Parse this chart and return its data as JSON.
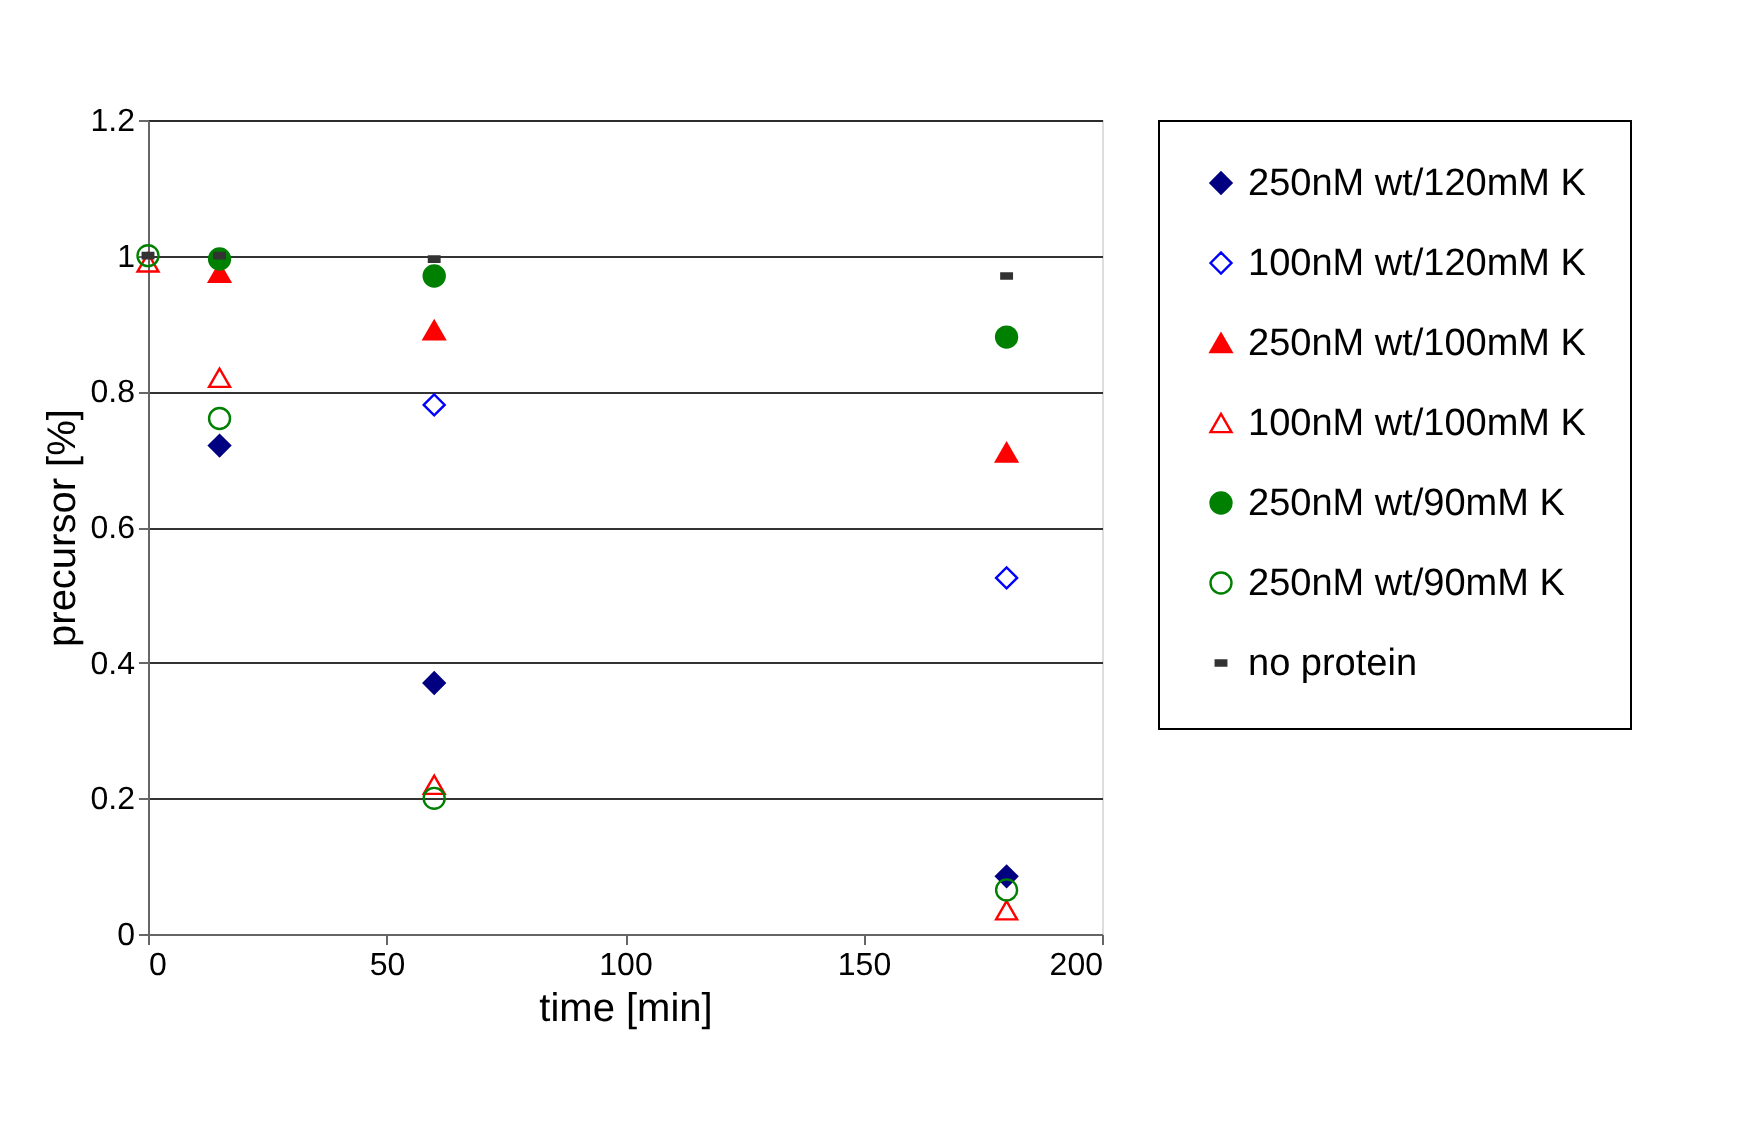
{
  "chart_data": {
    "type": "scatter",
    "xlabel": "time [min]",
    "ylabel": "precursor [%]",
    "x": [
      0,
      15,
      60,
      180
    ],
    "series": [
      {
        "name": "250nM wt/120mM K",
        "color": "#000080",
        "marker": "diamond",
        "values": [
          null,
          0.72,
          0.37,
          0.085
        ]
      },
      {
        "name": "100nM wt/120mM K",
        "color": "#0000ff",
        "marker": "diamond",
        "values": [
          null,
          null,
          0.78,
          0.525
        ]
      },
      {
        "name": "250nM wt/100mM K",
        "color": "#ff0000",
        "marker": "triangle",
        "values": [
          null,
          0.975,
          0.89,
          0.71
        ]
      },
      {
        "name": "100nM wt/100mM K",
        "color": "#ff0000",
        "marker": "triangle",
        "values": [
          0.99,
          0.82,
          0.22,
          0.035
        ]
      },
      {
        "name": "250nM wt/90mM K",
        "color": "#008000",
        "marker": "circle",
        "values": [
          null,
          0.995,
          0.97,
          0.88
        ]
      },
      {
        "name": "250nM wt/90mM K",
        "color": "#008000",
        "marker": "circle",
        "values": [
          1.0,
          0.76,
          0.2,
          0.065
        ]
      },
      {
        "name": "no protein",
        "color": "#333333",
        "marker": "square",
        "values": [
          1.0,
          1.0,
          0.995,
          0.97
        ]
      }
    ],
    "xlim": [
      0,
      200
    ],
    "xticks": [
      0,
      50,
      100,
      150,
      200
    ],
    "ylim": [
      0,
      1.2
    ],
    "yticks": [
      0,
      0.2,
      0.4,
      0.6,
      0.8,
      1,
      1.2
    ],
    "grid": "y",
    "legend": "right"
  }
}
